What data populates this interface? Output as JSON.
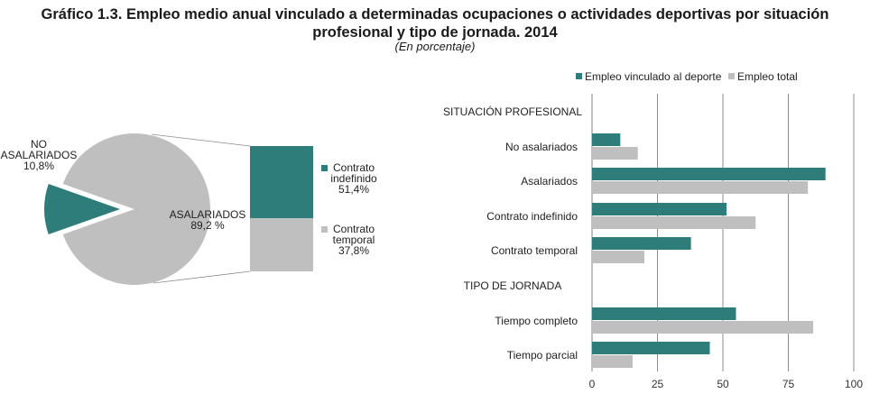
{
  "title_line1": "Gráfico 1.3. Empleo medio anual vinculado a determinadas ocupaciones o actividades deportivas por situación",
  "title_line2": "profesional y tipo de jornada. 2014",
  "subtitle": "(En porcentaje)",
  "colors": {
    "teal": "#2e7d7b",
    "gray": "#bfbfbf",
    "grid": "#7f7f7f"
  },
  "chart_data": [
    {
      "type": "pie",
      "slices": [
        {
          "label_lines": [
            "NO",
            "ASALARIADOS",
            "10,8%"
          ],
          "value": 10.8,
          "color": "#2e7d7b",
          "exploded": true
        },
        {
          "label_lines": [
            "ASALARIADOS",
            "89,2 %"
          ],
          "value": 89.2,
          "color": "#bfbfbf"
        }
      ],
      "breakdown": {
        "of": "ASALARIADOS",
        "segments": [
          {
            "label_lines": [
              "Contrato",
              "indefinido",
              "51,4%"
            ],
            "value": 51.4,
            "color": "#2e7d7b"
          },
          {
            "label_lines": [
              "Contrato",
              "temporal",
              "37,8%"
            ],
            "value": 37.8,
            "color": "#bfbfbf"
          }
        ]
      }
    },
    {
      "type": "bar",
      "orientation": "horizontal",
      "categories": [
        "SITUACIÓN PROFESIONAL",
        "No asalariados",
        "Asalariados",
        "Contrato indefinido",
        "Contrato temporal",
        "TIPO DE JORNADA",
        "Tiempo completo",
        "Tiempo parcial"
      ],
      "series": [
        {
          "name": "Empleo vinculado al deporte",
          "color": "#2e7d7b",
          "values": [
            null,
            10.8,
            89.2,
            51.4,
            37.8,
            null,
            55.0,
            45.0
          ]
        },
        {
          "name": "Empleo total",
          "color": "#bfbfbf",
          "values": [
            null,
            17.5,
            82.5,
            62.5,
            20.0,
            null,
            84.5,
            15.5
          ]
        }
      ],
      "xlim": [
        0,
        100
      ],
      "xticks": [
        0,
        25,
        50,
        75,
        100
      ],
      "grid": true,
      "legend": "top"
    }
  ]
}
